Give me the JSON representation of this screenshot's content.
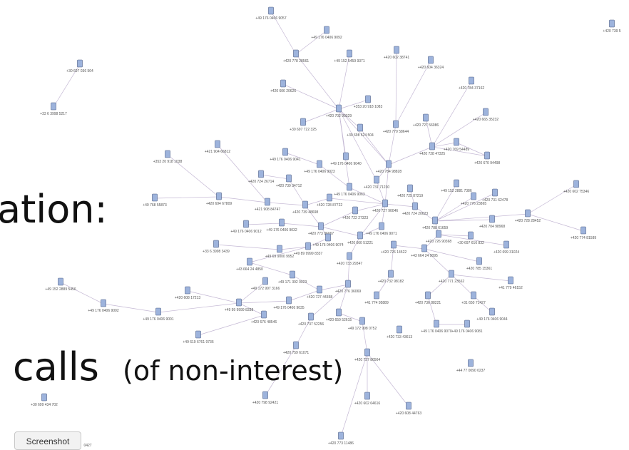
{
  "slide": {
    "text_lines": [
      "ation:",
      "calls",
      "(of non-interest)"
    ],
    "button": "Screenshot",
    "fragment": "0427"
  },
  "nodes": [
    {
      "label": "+49 176 0406 9057"
    },
    {
      "label": "+49 176 0406 9092"
    },
    {
      "label": "+420 778 28561"
    },
    {
      "label": "+49 152 5459 9371"
    },
    {
      "label": "+420 602 38741"
    },
    {
      "label": "+420 604 36324"
    },
    {
      "label": "+30 697 036 504"
    },
    {
      "label": "+33 6 3998 5217"
    },
    {
      "label": "+420 606 20626"
    },
    {
      "label": "+420 784 37162"
    },
    {
      "label": "+353 20 918 1083"
    },
    {
      "label": "+420 702 90329"
    },
    {
      "label": "+420 665 35232"
    },
    {
      "label": "+420 727 56086"
    },
    {
      "label": "+30 697 722 325"
    },
    {
      "label": "+30 698 524 504"
    },
    {
      "label": "+420 770 58644"
    },
    {
      "label": "+420 769 54489"
    },
    {
      "label": "+420 728 47325"
    },
    {
      "label": "+420 670 94498"
    },
    {
      "label": "+421 904 66812"
    },
    {
      "label": "+49 176 0406 9041"
    },
    {
      "label": "+353 20 918 1038"
    },
    {
      "label": "+49 176 0406 9040"
    },
    {
      "label": "+49 176 0406 9023"
    },
    {
      "label": "+420 784 98828"
    },
    {
      "label": "+420 724 26714"
    },
    {
      "label": "+420 739 34712"
    },
    {
      "label": "+420 731 71230"
    },
    {
      "label": "+49 176 0406 9063"
    },
    {
      "label": "+420 725 87219"
    },
    {
      "label": "+49 152 2881 7386"
    },
    {
      "label": "+420 776 23865"
    },
    {
      "label": "+420 731 62478"
    },
    {
      "label": "+420 602 75346"
    },
    {
      "label": "+40 768 55873"
    },
    {
      "label": "+420 694 67809"
    },
    {
      "label": "+420 728 87722"
    },
    {
      "label": "+420 727 90046"
    },
    {
      "label": "+420 724 20623"
    },
    {
      "label": "+420 728 28452"
    },
    {
      "label": "+421 908 84747"
    },
    {
      "label": "+420 739 48698"
    },
    {
      "label": "+420 722 27323"
    },
    {
      "label": "+420 704 98968"
    },
    {
      "label": "+420 788 61659"
    },
    {
      "label": "+420 774 81589"
    },
    {
      "label": "+49 176 0406 9012"
    },
    {
      "label": "+49 176 0406 9032"
    },
    {
      "label": "+420 773 96067"
    },
    {
      "label": "+49 176 0406 9071"
    },
    {
      "label": "+420 726 90368"
    },
    {
      "label": "+30 697 616 832"
    },
    {
      "label": "+420 660 51221"
    },
    {
      "label": "+49 176 0406 9074"
    },
    {
      "label": "+33 6 3998 3439"
    },
    {
      "label": "+49 69 9000 9952"
    },
    {
      "label": "+49 89 9999 8337"
    },
    {
      "label": "+420 726 14522"
    },
    {
      "label": "+43 664 24 9095"
    },
    {
      "label": "+420 699 31024"
    },
    {
      "label": "+420 733 29347"
    },
    {
      "label": "+43 664 24 4850"
    },
    {
      "label": "+420 785 15361"
    },
    {
      "label": "+49 171 392 0023"
    },
    {
      "label": "+420 732 98182"
    },
    {
      "label": "+420 771 23562"
    },
    {
      "label": "+41 779 46152"
    },
    {
      "label": "+49 172 997 3166"
    },
    {
      "label": "+49 152 2889 5456"
    },
    {
      "label": "+420 776 36069"
    },
    {
      "label": "+420 727 44358"
    },
    {
      "label": "+420 608 17213"
    },
    {
      "label": "+49 176 0406 9002"
    },
    {
      "label": "+49 99 9999 8338"
    },
    {
      "label": "+49 176 0406 9035"
    },
    {
      "label": "+41 774 95889"
    },
    {
      "label": "+420 736 88221"
    },
    {
      "label": "+31 650 71427"
    },
    {
      "label": "+49 176 0406 9001"
    },
    {
      "label": "+49 176 0406 9044"
    },
    {
      "label": "+420 676 48546"
    },
    {
      "label": "+420 737 52256"
    },
    {
      "label": "+420 650 52615"
    },
    {
      "label": "+49 172 998 0752"
    },
    {
      "label": "+49 176 0406 9070"
    },
    {
      "label": "+49 176 0406 9081"
    },
    {
      "label": "+420 733 43613"
    },
    {
      "label": "+49 619 6761 9736"
    },
    {
      "label": "+420 759 61071"
    },
    {
      "label": "+420 727 86564"
    },
    {
      "label": "+44 77 0090 0237"
    },
    {
      "label": "+30 699 434 702"
    },
    {
      "label": "+420 798 92421"
    },
    {
      "label": "+420 602 64616"
    },
    {
      "label": "+420 608 44763"
    },
    {
      "label": "+420 773 11486"
    },
    {
      "label": "+420 739 5"
    }
  ]
}
